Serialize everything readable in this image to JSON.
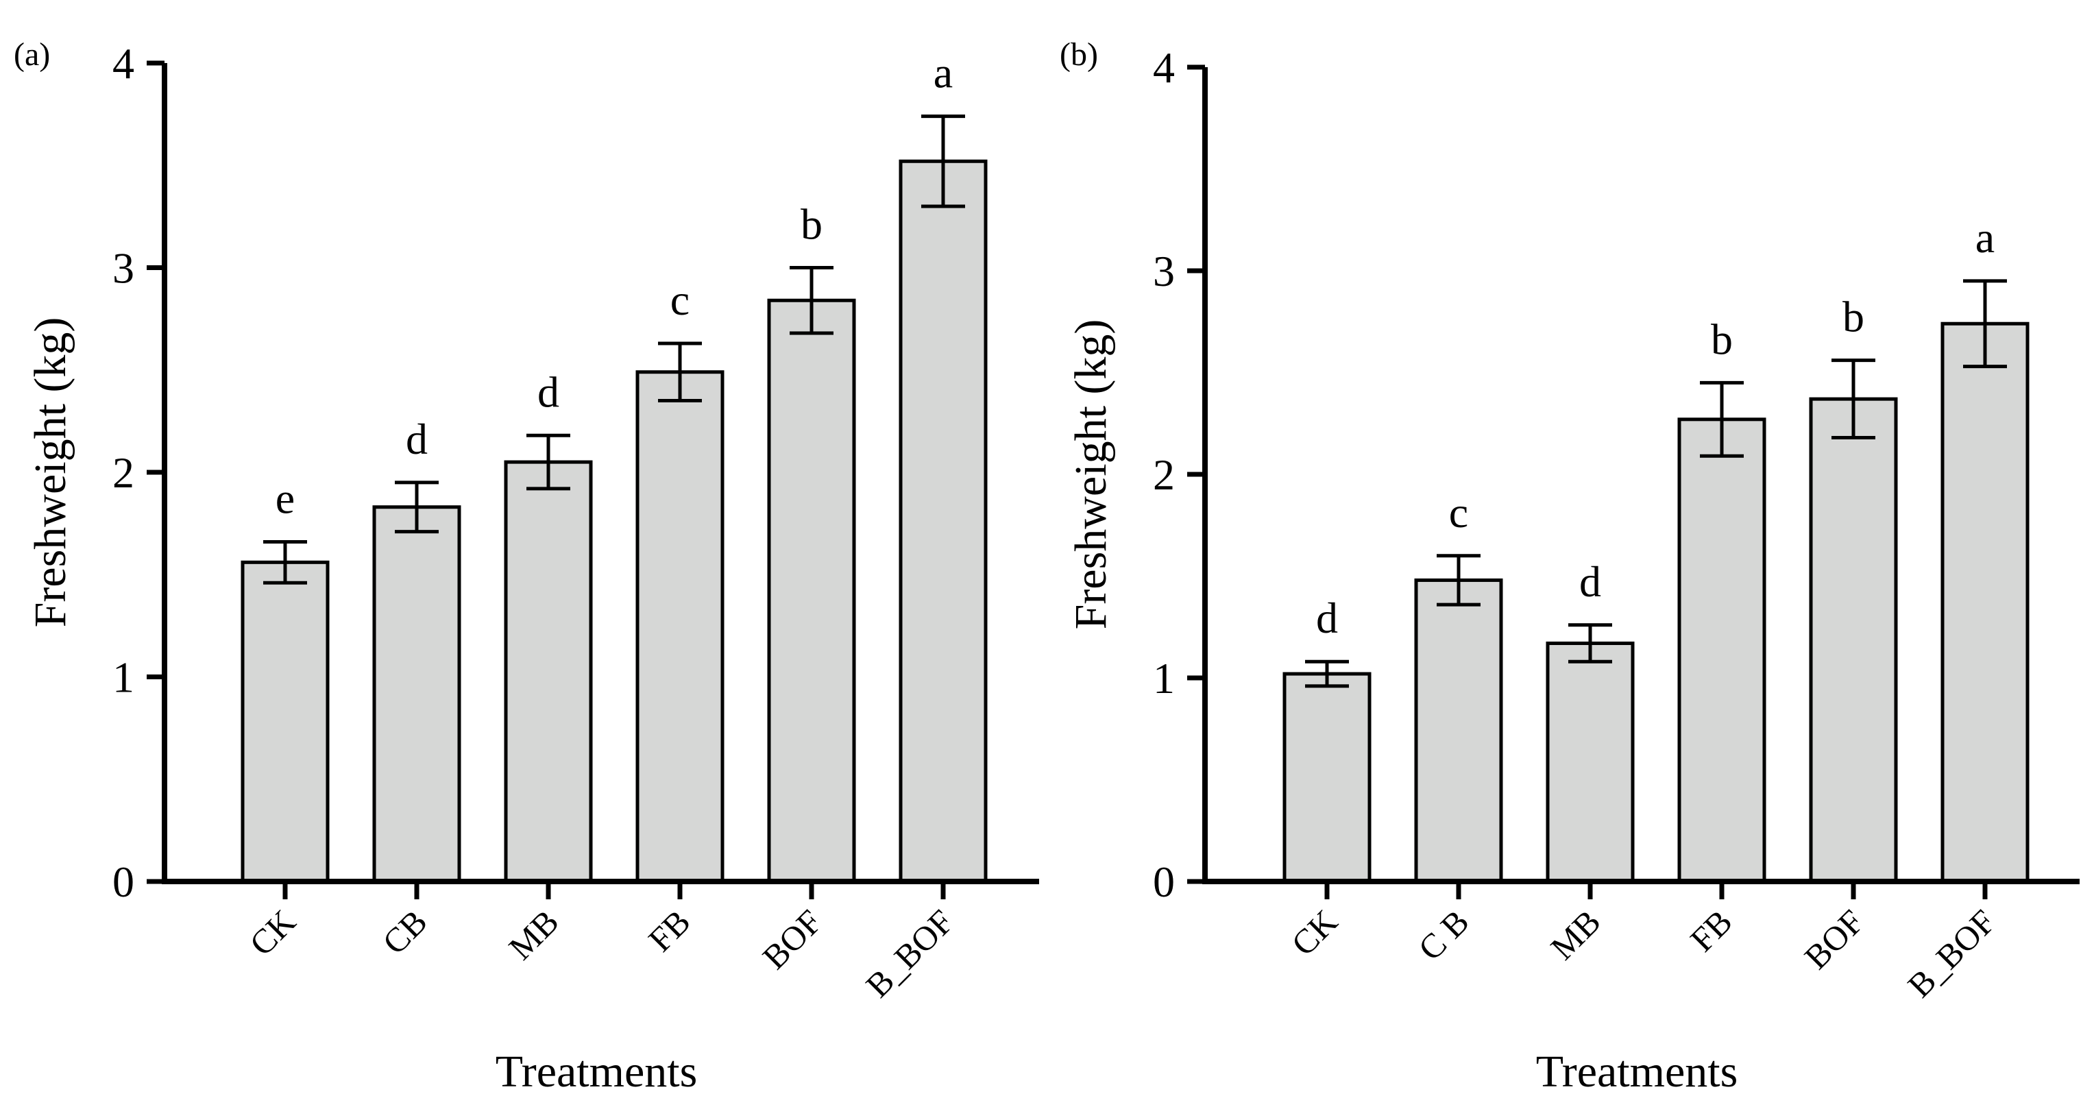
{
  "colors": {
    "bar_fill": "#d6d7d6",
    "stroke": "#000000",
    "background": "#ffffff"
  },
  "chart_data": [
    {
      "panel": "(a)",
      "type": "bar",
      "categories": [
        "CK",
        "CB",
        "MB",
        "FB",
        "BOF",
        "B_BOF"
      ],
      "values": [
        1.56,
        1.83,
        2.05,
        2.49,
        2.84,
        3.52
      ],
      "error": [
        0.1,
        0.12,
        0.13,
        0.14,
        0.16,
        0.22
      ],
      "letters": [
        "e",
        "d",
        "d",
        "c",
        "b",
        "a"
      ],
      "xlabel": "Treatments",
      "ylabel": "Freshweight (kg)",
      "ylim": [
        0,
        4
      ],
      "yticks": [
        0,
        1,
        2,
        3,
        4
      ]
    },
    {
      "panel": "(b)",
      "type": "bar",
      "categories": [
        "CK",
        "C B",
        "MB",
        "FB",
        "BOF",
        "B_BOF"
      ],
      "values": [
        1.02,
        1.48,
        1.17,
        2.27,
        2.37,
        2.74
      ],
      "error": [
        0.06,
        0.12,
        0.09,
        0.18,
        0.19,
        0.21
      ],
      "letters": [
        "d",
        "c",
        "d",
        "b",
        "b",
        "a"
      ],
      "xlabel": "Treatments",
      "ylabel": "Freshweight (kg)",
      "ylim": [
        0,
        4
      ],
      "yticks": [
        0,
        1,
        2,
        3,
        4
      ]
    }
  ]
}
